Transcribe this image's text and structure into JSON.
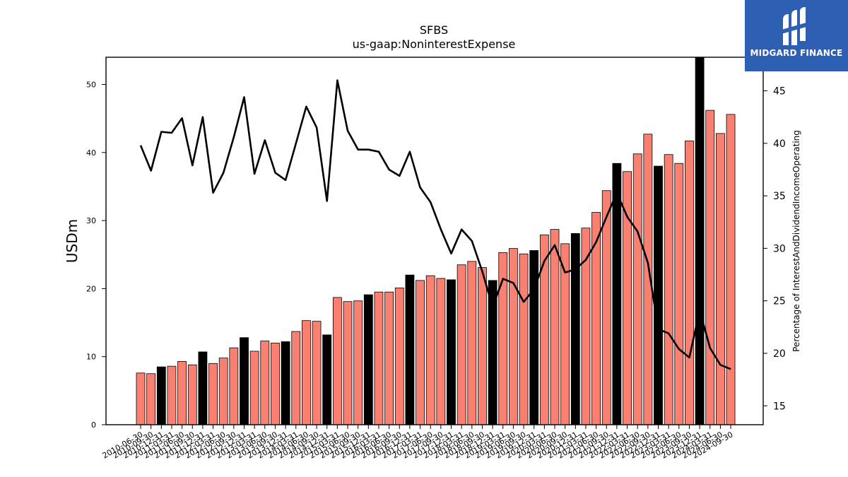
{
  "chart_data": {
    "type": "bar+line",
    "title": "SFBS",
    "subtitle": "us-gaap:NoninterestExpense",
    "ylabel": "USDm",
    "y2label": "Percentage of InterestAndDividendIncomeOperating",
    "ylim": [
      0,
      54
    ],
    "y2lim": [
      13.2,
      48.2
    ],
    "yticks": [
      0,
      10,
      20,
      30,
      40,
      50
    ],
    "y2ticks": [
      15,
      20,
      25,
      30,
      35,
      40,
      45
    ],
    "categories": [
      "2010-06-30",
      "2010-09-30",
      "2010-12-31",
      "2011-03-31",
      "2011-06-30",
      "2011-09-30",
      "2011-12-31",
      "2012-03-31",
      "2012-06-30",
      "2012-09-30",
      "2012-12-31",
      "2013-03-31",
      "2013-06-30",
      "2013-09-30",
      "2013-12-31",
      "2014-03-31",
      "2014-06-30",
      "2014-09-30",
      "2014-12-31",
      "2015-03-31",
      "2015-06-30",
      "2015-09-30",
      "2015-12-31",
      "2016-03-31",
      "2016-06-30",
      "2016-09-30",
      "2016-12-31",
      "2017-03-31",
      "2017-06-30",
      "2017-09-30",
      "2017-12-31",
      "2018-03-31",
      "2018-06-30",
      "2018-09-30",
      "2018-12-31",
      "2019-03-31",
      "2019-06-30",
      "2019-09-30",
      "2019-12-31",
      "2020-03-31",
      "2020-06-30",
      "2020-09-30",
      "2020-12-31",
      "2021-03-31",
      "2021-06-30",
      "2021-09-30",
      "2021-12-31",
      "2022-03-31",
      "2022-06-30",
      "2022-09-30",
      "2022-12-31",
      "2023-03-31",
      "2023-06-30",
      "2023-09-30",
      "2023-12-31",
      "2024-03-31",
      "2024-06-30",
      "2024-09-30"
    ],
    "series": [
      {
        "kind": "bar",
        "values": [
          7.6,
          7.5,
          8.5,
          8.6,
          9.3,
          8.8,
          10.7,
          9.0,
          9.8,
          11.3,
          12.8,
          10.8,
          12.3,
          12.0,
          12.2,
          13.7,
          15.3,
          15.2,
          13.2,
          18.7,
          18.1,
          18.2,
          19.1,
          19.5,
          19.5,
          20.1,
          22.0,
          21.2,
          21.9,
          21.5,
          21.3,
          23.5,
          24.0,
          23.1,
          21.2,
          25.3,
          25.9,
          25.1,
          25.6,
          27.9,
          28.7,
          26.6,
          28.1,
          28.9,
          31.2,
          34.4,
          38.4,
          37.2,
          39.8,
          42.7,
          38.0,
          39.7,
          38.4,
          41.7,
          54.0,
          46.2,
          42.8,
          45.6
        ],
        "colors": {
          "default": "#fa8072",
          "highlight": "#000000"
        },
        "highlight_indices": [
          2,
          6,
          10,
          14,
          18,
          22,
          26,
          30,
          34,
          38,
          42,
          46,
          50,
          54
        ]
      },
      {
        "kind": "line",
        "axis": "right",
        "color": "#000000",
        "values": [
          39.8,
          37.4,
          41.1,
          41.0,
          42.4,
          37.9,
          42.5,
          35.3,
          37.2,
          40.6,
          44.4,
          37.1,
          40.3,
          37.2,
          36.5,
          40.0,
          43.5,
          41.5,
          34.5,
          46.0,
          41.2,
          39.4,
          39.4,
          39.2,
          37.5,
          36.9,
          39.2,
          35.8,
          34.4,
          31.8,
          29.5,
          31.8,
          30.7,
          27.8,
          24.4,
          27.1,
          26.7,
          24.9,
          26.1,
          28.8,
          30.3,
          27.7,
          28.0,
          28.9,
          30.6,
          33.0,
          35.3,
          33.0,
          31.6,
          28.6,
          22.3,
          21.9,
          20.4,
          19.6,
          24.1,
          20.5,
          18.9,
          18.5
        ]
      }
    ]
  },
  "logo": {
    "text": "MIDGARD FINANCE",
    "background": "#2f5fb3"
  }
}
